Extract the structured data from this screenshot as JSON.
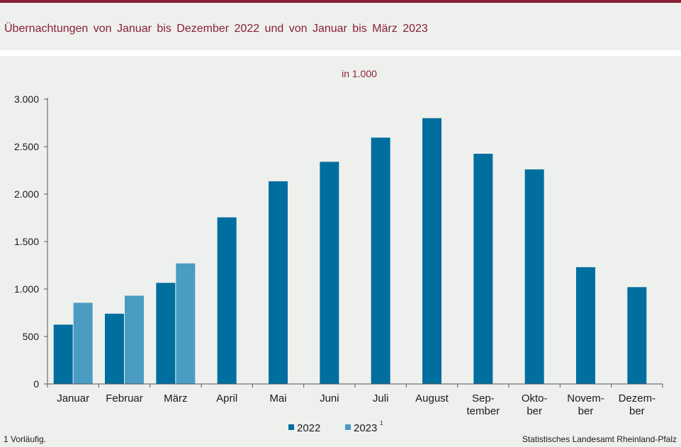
{
  "header": {
    "title": "Übernachtungen von Januar bis Dezember 2022 und von Januar bis März 2023"
  },
  "chart_data": {
    "type": "bar",
    "title": "Übernachtungen von Januar bis Dezember 2022 und von Januar bis März 2023",
    "unit_label": "in 1.000",
    "categories": [
      [
        "Januar"
      ],
      [
        "Februar"
      ],
      [
        "März"
      ],
      [
        "April"
      ],
      [
        "Mai"
      ],
      [
        "Juni"
      ],
      [
        "Juli"
      ],
      [
        "August"
      ],
      [
        "Sep-",
        "tember"
      ],
      [
        "Okto-",
        "ber"
      ],
      [
        "Novem-",
        "ber"
      ],
      [
        "Dezem-",
        "ber"
      ]
    ],
    "series": [
      {
        "name": "2022",
        "color": "#006e9f",
        "values": [
          625,
          740,
          1065,
          1755,
          2135,
          2340,
          2595,
          2800,
          2425,
          2260,
          1230,
          1020
        ]
      },
      {
        "name": "2023",
        "superscript": "1",
        "color": "#4a9cc2",
        "values": [
          855,
          930,
          1270,
          null,
          null,
          null,
          null,
          null,
          null,
          null,
          null,
          null
        ]
      }
    ],
    "ylim": [
      0,
      3000
    ],
    "yticks": [
      0,
      500,
      1000,
      1500,
      2000,
      2500,
      3000
    ],
    "ytick_labels": [
      "0",
      "500",
      "1.000",
      "1.500",
      "2.000",
      "2.500",
      "3.000"
    ],
    "grid": false,
    "legend_position": "bottom-center"
  },
  "footnote": "1 Vorläufig.",
  "source": "Statistisches Landesamt Rheinland-Pfalz"
}
